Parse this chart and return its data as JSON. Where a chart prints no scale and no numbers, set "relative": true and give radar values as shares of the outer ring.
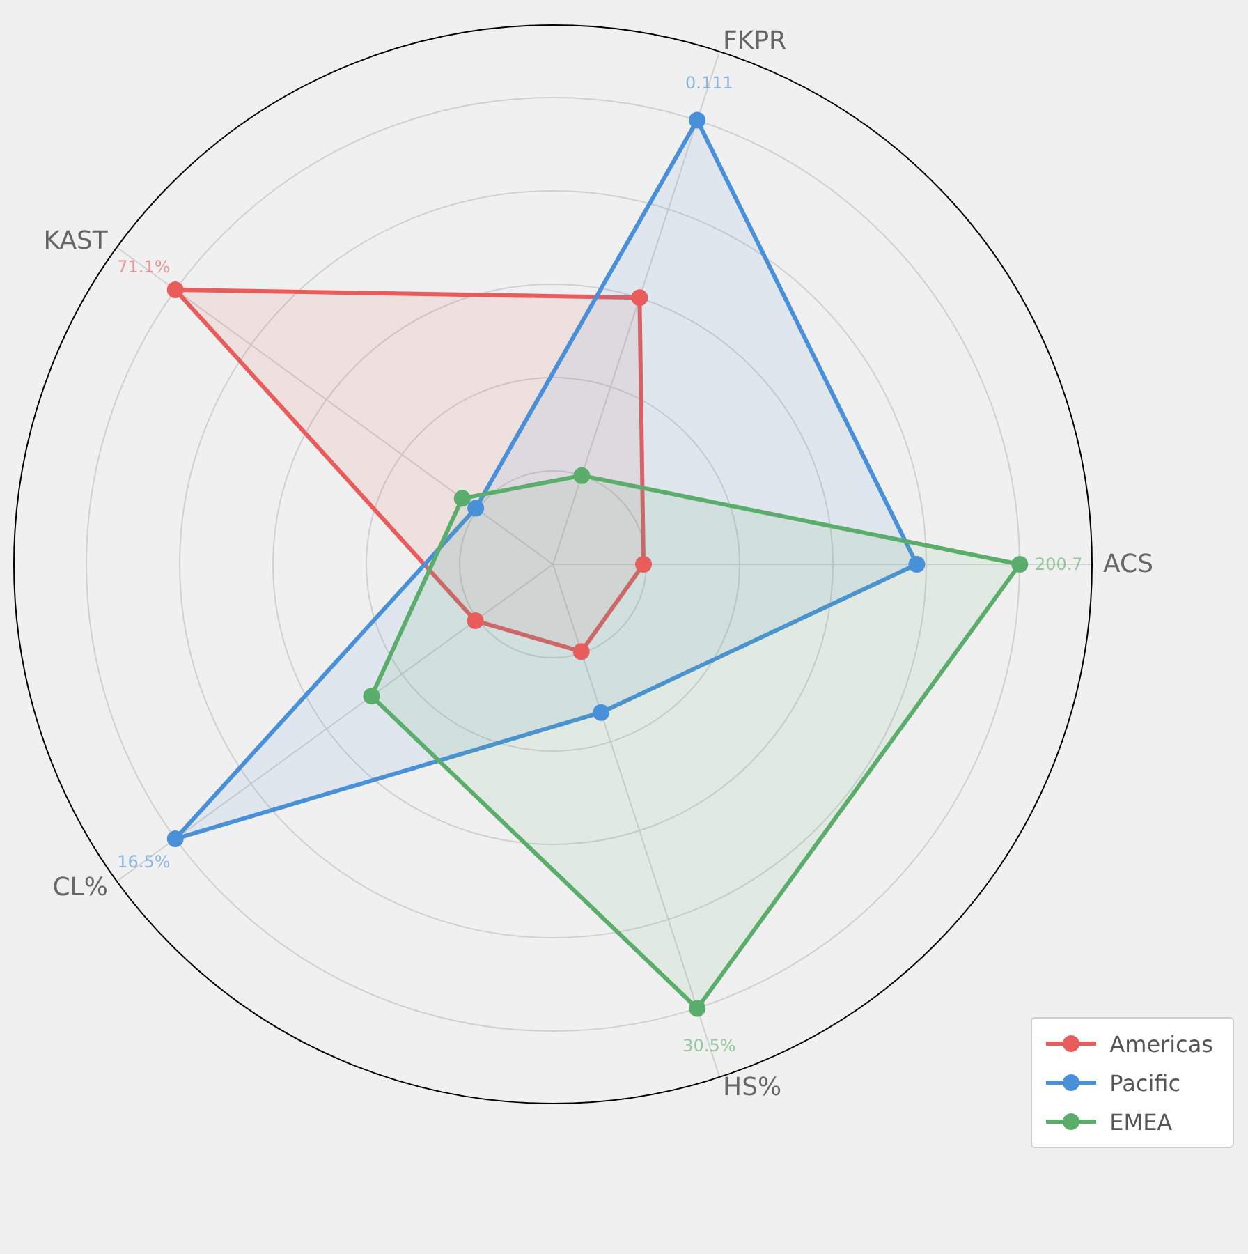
{
  "chart_data": {
    "type": "radar",
    "relative": true,
    "categories": [
      "FKPR",
      "ACS",
      "HS%",
      "CL%",
      "KAST"
    ],
    "series": [
      {
        "name": "Americas",
        "color": "#e85c5c",
        "values": [
          0.52,
          0.168,
          0.17,
          0.178,
          0.866
        ]
      },
      {
        "name": "Pacific",
        "color": "#4a90d9",
        "values": [
          0.866,
          0.675,
          0.289,
          0.866,
          0.177
        ]
      },
      {
        "name": "EMEA",
        "color": "#5aad6a",
        "values": [
          0.173,
          0.866,
          0.866,
          0.416,
          0.208
        ]
      }
    ],
    "annotations": [
      {
        "text": "0.111",
        "x": "FKPR"
      },
      {
        "text": "200.7",
        "x": "ACS"
      },
      {
        "text": "30.5%",
        "x": "HS%"
      },
      {
        "text": "16.5%",
        "x": "CL%"
      },
      {
        "text": "71.1%",
        "x": "KAST"
      }
    ],
    "grid": true,
    "legend": "bottom right",
    "marker": "circle"
  }
}
